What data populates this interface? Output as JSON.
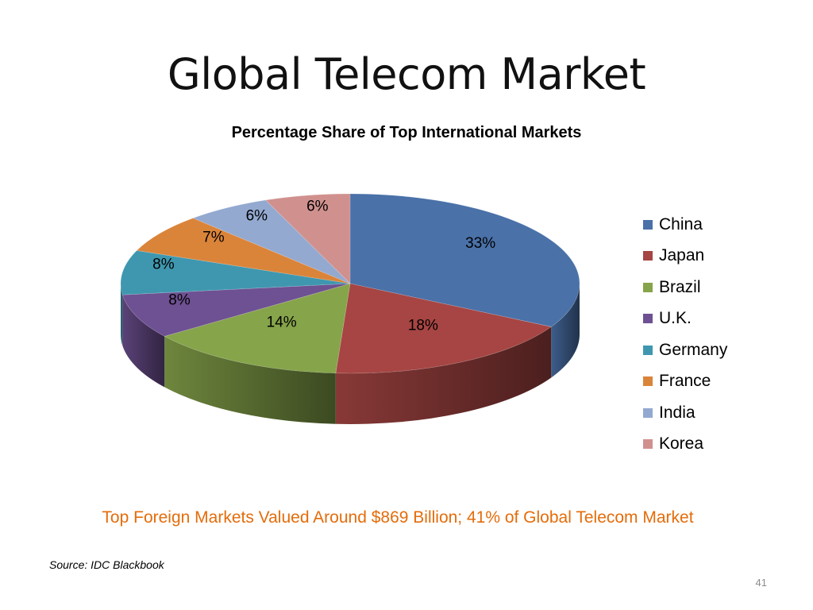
{
  "slide": {
    "title": "Global Telecom Market",
    "footer_note": "Top Foreign Markets Valued Around $869 Billion;  41% of Global  Telecom Market",
    "source": "Source: IDC Blackbook",
    "page_number": "41"
  },
  "chart_data": {
    "type": "pie",
    "title": "Percentage Share of Top International Markets",
    "style": "3d",
    "legend_position": "right",
    "categories": [
      "China",
      "Japan",
      "Brazil",
      "U.K.",
      "Germany",
      "France",
      "India",
      "Korea"
    ],
    "values": [
      33,
      18,
      14,
      8,
      8,
      7,
      6,
      6
    ],
    "labels": [
      "33%",
      "18%",
      "14%",
      "8%",
      "8%",
      "7%",
      "6%",
      "6%"
    ],
    "colors": [
      "#4A71A8",
      "#A64543",
      "#86A44A",
      "#6E5192",
      "#3F97AF",
      "#DA843A",
      "#93A9D0",
      "#D0918E"
    ]
  }
}
